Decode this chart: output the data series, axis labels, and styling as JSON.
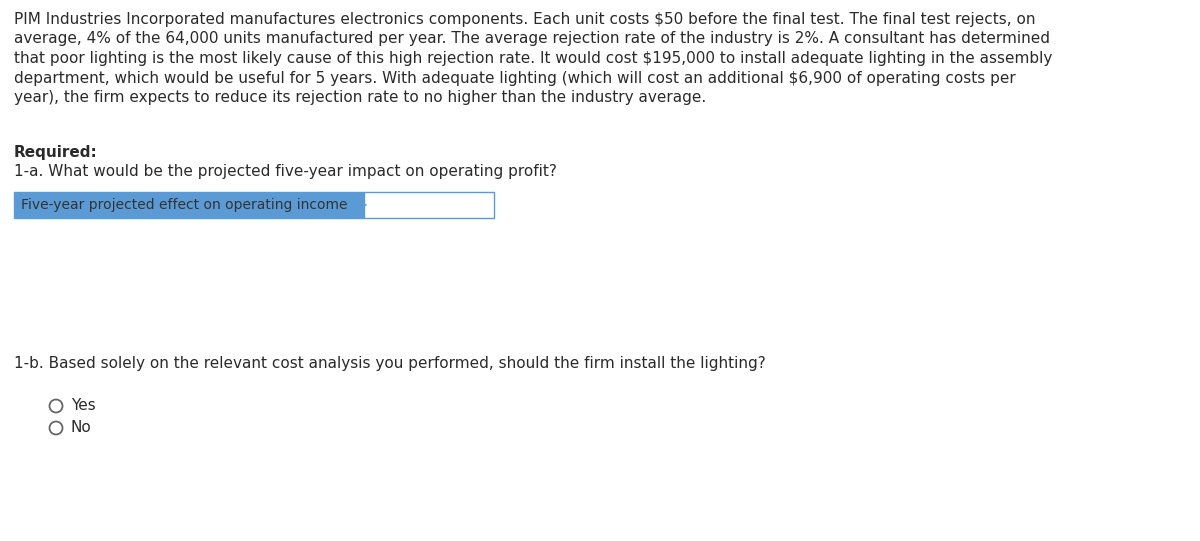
{
  "background_color": "#ffffff",
  "paragraph_lines": [
    "PIM Industries Incorporated manufactures electronics components. Each unit costs $50 before the final test. The final test rejects, on",
    "average, 4% of the 64,000 units manufactured per year. The average rejection rate of the industry is 2%. A consultant has determined",
    "that poor lighting is the most likely cause of this high rejection rate. It would cost $195,000 to install adequate lighting in the assembly",
    "department, which would be useful for 5 years. With adequate lighting (which will cost an additional $6,900 of operating costs per",
    "year), the firm expects to reduce its rejection rate to no higher than the industry average."
  ],
  "required_label": "Required:",
  "question_1a": "1-a. What would be the projected five-year impact on operating profit?",
  "table_label": "Five-year projected effect on operating income",
  "table_bg_color": "#5b9bd5",
  "table_border_color": "#5b9bd5",
  "table_text_color": "#333333",
  "input_bg_color": "#ffffff",
  "input_border_color": "#5b9bd5",
  "question_1b": "1-b. Based solely on the relevant cost analysis you performed, should the firm install the lighting?",
  "option_yes": "Yes",
  "option_no": "No",
  "font_size_body": 11.0,
  "font_size_required": 11.0,
  "font_size_table": 10.0,
  "text_color": "#2a2a2a"
}
